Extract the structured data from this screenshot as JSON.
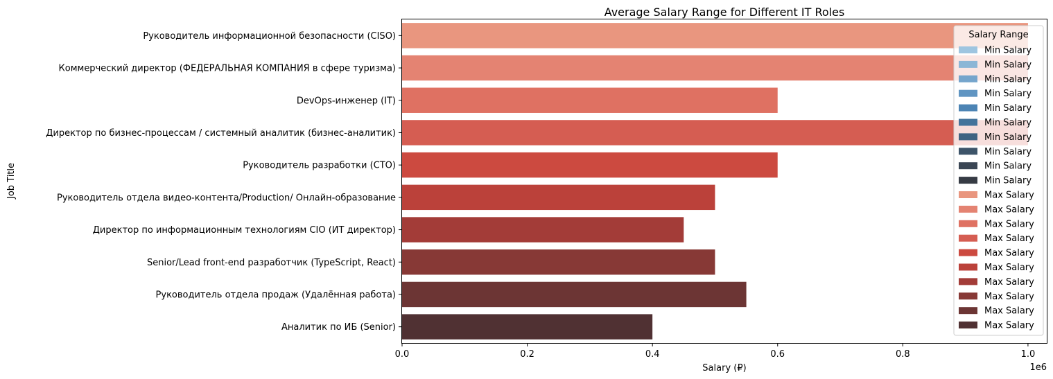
{
  "chart_data": {
    "type": "bar",
    "orientation": "horizontal",
    "title": "Average Salary Range for Different IT Roles",
    "xlabel": "Salary (₽)",
    "ylabel": "Job Title",
    "x_offset_label": "1e6",
    "xlim": [
      0,
      1030000
    ],
    "x_ticks": [
      {
        "value": 0,
        "label": "0.0"
      },
      {
        "value": 200000,
        "label": "0.2"
      },
      {
        "value": 400000,
        "label": "0.4"
      },
      {
        "value": 600000,
        "label": "0.6"
      },
      {
        "value": 800000,
        "label": "0.8"
      },
      {
        "value": 1000000,
        "label": "1.0"
      }
    ],
    "categories": [
      "Руководитель информационной безопасности (CISO)",
      "Коммерческий директор (ФЕДЕРАЛЬНАЯ КОМПАНИЯ в сфере туризма)",
      "DevOps-инженер (IT)",
      "Директор по бизнес-процессам / системный аналитик (бизнес-аналитик)",
      "Руководитель разработки (CTO)",
      "Руководитель отдела видео-контента/Production/ Онлайн-образование",
      "Директор по информационным технологиям CIO (ИТ директор)",
      "Senior/Lead front-end разработчик (TypeScript, React)",
      "Руководитель отдела продаж (Удалённая работа)",
      "Аналитик по ИБ (Senior)"
    ],
    "series": [
      {
        "name": "Max Salary",
        "values": [
          1000000,
          1000000,
          600000,
          1000000,
          600000,
          500000,
          450000,
          500000,
          550000,
          400000
        ],
        "colors": [
          "#e9967f",
          "#e48372",
          "#df7162",
          "#d55d52",
          "#cc4a40",
          "#bb413a",
          "#a33c38",
          "#873936",
          "#6c3534",
          "#503133"
        ]
      }
    ],
    "legend": {
      "title": "Salary Range",
      "placement": "top-right",
      "entries": [
        {
          "label": "Min Salary",
          "color": "#9ec5e0"
        },
        {
          "label": "Min Salary",
          "color": "#8bb6d6"
        },
        {
          "label": "Min Salary",
          "color": "#75a5cc"
        },
        {
          "label": "Min Salary",
          "color": "#6095c2"
        },
        {
          "label": "Min Salary",
          "color": "#4c84b4"
        },
        {
          "label": "Min Salary",
          "color": "#43739b"
        },
        {
          "label": "Min Salary",
          "color": "#3f6382"
        },
        {
          "label": "Min Salary",
          "color": "#3d5469"
        },
        {
          "label": "Min Salary",
          "color": "#3a4654"
        },
        {
          "label": "Min Salary",
          "color": "#363b44"
        },
        {
          "label": "Max Salary",
          "color": "#e9967f"
        },
        {
          "label": "Max Salary",
          "color": "#e48372"
        },
        {
          "label": "Max Salary",
          "color": "#df7162"
        },
        {
          "label": "Max Salary",
          "color": "#d55d52"
        },
        {
          "label": "Max Salary",
          "color": "#cc4a40"
        },
        {
          "label": "Max Salary",
          "color": "#bb413a"
        },
        {
          "label": "Max Salary",
          "color": "#a33c38"
        },
        {
          "label": "Max Salary",
          "color": "#873936"
        },
        {
          "label": "Max Salary",
          "color": "#6c3534"
        },
        {
          "label": "Max Salary",
          "color": "#503133"
        }
      ]
    },
    "grid": false
  }
}
